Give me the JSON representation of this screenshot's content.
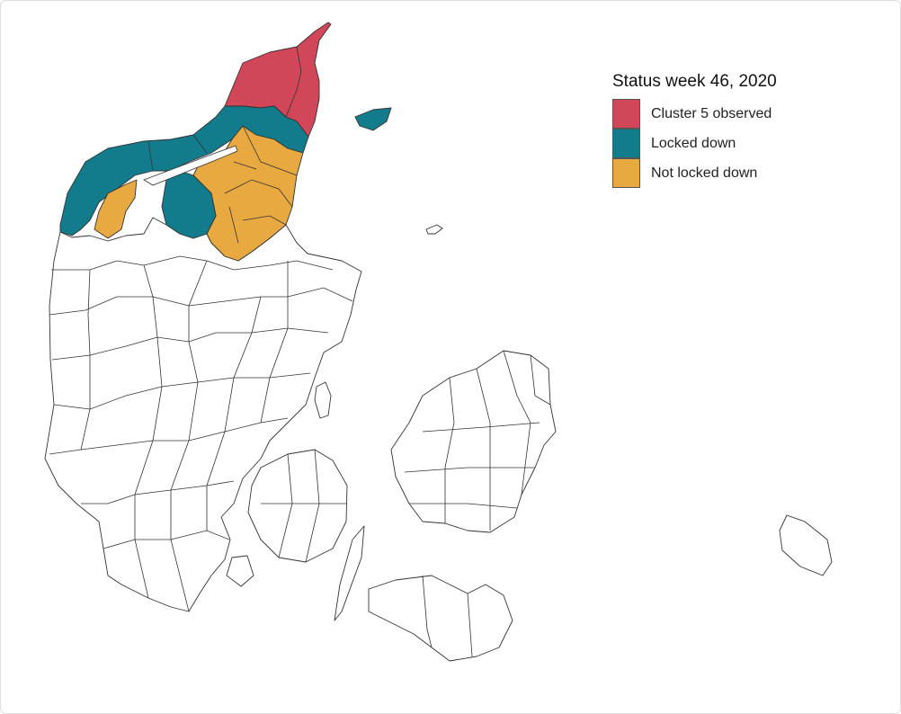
{
  "legend": {
    "title": "Status week 46, 2020",
    "items": [
      {
        "label": "Cluster 5 observed",
        "color": "#d2465a"
      },
      {
        "label": "Locked down",
        "color": "#127c8c"
      },
      {
        "label": "Not locked down",
        "color": "#e9a941"
      }
    ]
  },
  "colors": {
    "default_fill": "#ffffff",
    "outline": "#333333"
  }
}
